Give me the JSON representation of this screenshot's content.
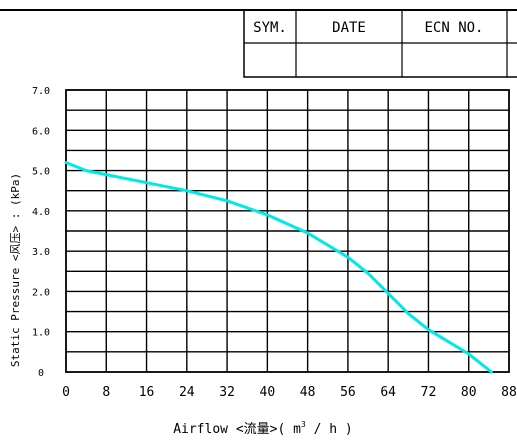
{
  "title_block": {
    "headers": [
      "SYM.",
      "DATE",
      "ECN NO."
    ]
  },
  "chart_data": {
    "type": "line",
    "xlabel_parts": {
      "prefix": "Airflow  <流量>( m",
      "superscript": "3",
      "suffix": " / h )"
    },
    "ylabel": "Static  Pressure  <风压> : (kPa)",
    "xlim": [
      0,
      88
    ],
    "ylim": [
      0,
      7
    ],
    "x_ticks": [
      "0",
      "8",
      "16",
      "24",
      "32",
      "40",
      "48",
      "56",
      "64",
      "72",
      "80",
      "88"
    ],
    "y_ticks": [
      "0",
      "1.0",
      "2.0",
      "3.0",
      "4.0",
      "5.0",
      "6.0",
      "7.0"
    ],
    "grid": true,
    "line_color": "#00e8e8",
    "series": [
      {
        "x": [
          0,
          4,
          8,
          16,
          24,
          32,
          40,
          48,
          56,
          60,
          64,
          68,
          72,
          76,
          80,
          82,
          84.5
        ],
        "y": [
          5.2,
          5.0,
          4.9,
          4.7,
          4.5,
          4.25,
          3.9,
          3.45,
          2.85,
          2.45,
          1.95,
          1.45,
          1.05,
          0.75,
          0.45,
          0.25,
          0.0
        ]
      }
    ]
  }
}
